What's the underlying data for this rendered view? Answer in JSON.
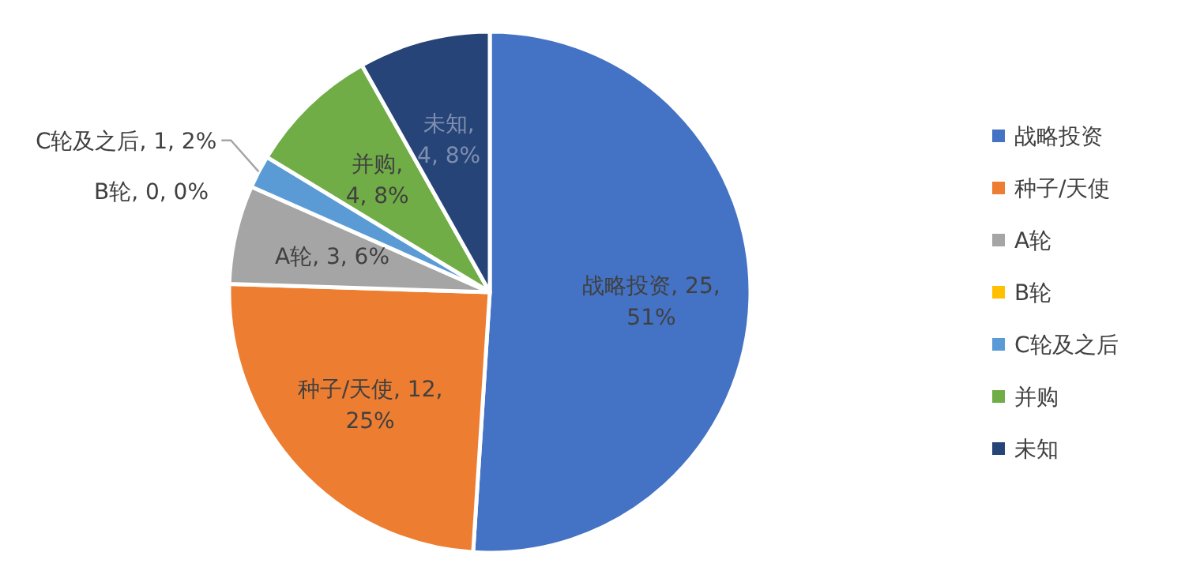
{
  "chart_data": {
    "type": "pie",
    "categories": [
      "战略投资",
      "种子/天使",
      "A轮",
      "B轮",
      "C轮及之后",
      "并购",
      "未知"
    ],
    "values": [
      25,
      12,
      3,
      0,
      1,
      4,
      4
    ],
    "value_labels": [
      "战略投资, 25, 51%",
      "种子/天使, 12, 25%",
      "A轮, 3, 6%",
      "B轮, 0, 0%",
      "C轮及之后, 1, 2%",
      "并购, 4, 8%",
      "未知, 4, 8%"
    ],
    "colors": [
      "#4472c4",
      "#ed7d31",
      "#a5a5a5",
      "#ffc000",
      "#5b9bd5",
      "#70ad47",
      "#264478"
    ],
    "legend": "right"
  }
}
